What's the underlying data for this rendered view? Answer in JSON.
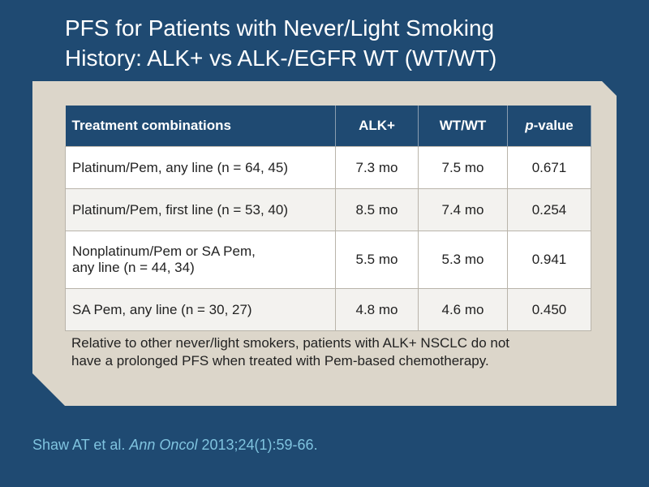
{
  "title": {
    "lines": [
      "PFS for Patients with Never/Light Smoking",
      "History: ALK+ vs ALK-/EGFR WT (WT/WT)"
    ]
  },
  "table": {
    "header": [
      "Treatment combinations",
      "ALK+",
      "WT/WT",
      {
        "italic": "p",
        "rest": "-value"
      }
    ],
    "rows": [
      [
        "Platinum/Pem, any line (n = 64, 45)",
        "7.3 mo",
        "7.5 mo",
        "0.671"
      ],
      [
        "Platinum/Pem, first line (n = 53, 40)",
        "8.5 mo",
        "7.4 mo",
        "0.254"
      ],
      [
        [
          "Nonplatinum/Pem or SA Pem,",
          "any line (n = 44, 34)"
        ],
        "5.5 mo",
        "5.3 mo",
        "0.941"
      ],
      [
        "SA Pem, any line (n = 30, 27)",
        "4.8 mo",
        "4.6 mo",
        "0.450"
      ]
    ]
  },
  "note": {
    "lines": [
      "Relative to other never/light smokers, patients with ALK+ NSCLC do not",
      "have a prolonged PFS when treated with Pem-based chemotherapy."
    ]
  },
  "citation": {
    "authors": "Shaw AT et al. ",
    "journal": "Ann Oncol",
    "details": " 2013;24(1):59-66."
  }
}
